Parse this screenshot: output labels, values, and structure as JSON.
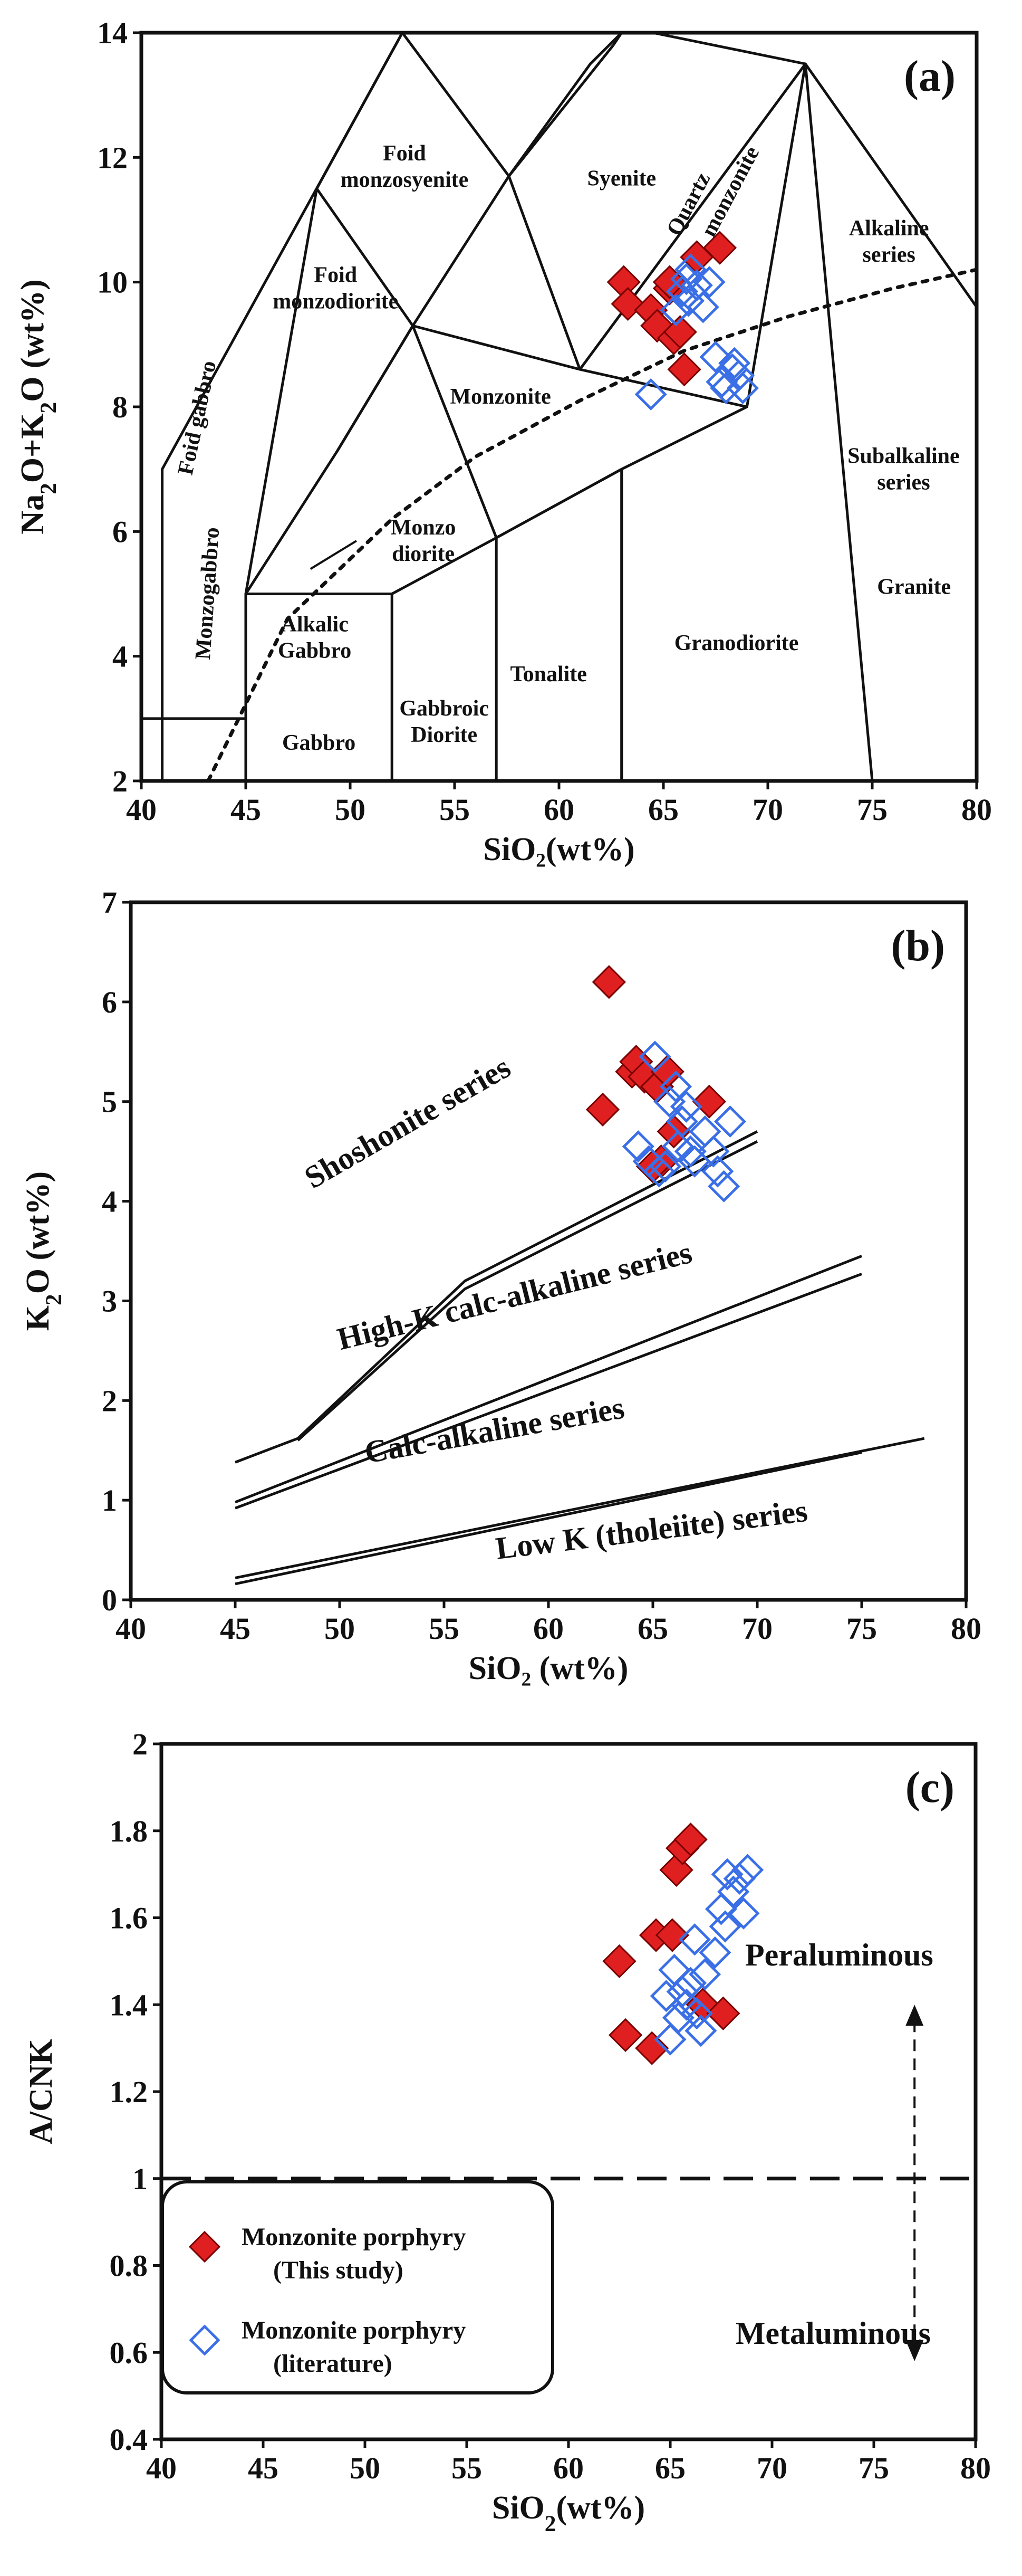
{
  "colors": {
    "red": "#e02020",
    "blue": "#3a6fe6",
    "line": "#111111"
  },
  "legend": {
    "items": [
      {
        "marker": "filled-diamond",
        "line1": "Monzonite porphyry",
        "line2": "(This study)"
      },
      {
        "marker": "open-diamond",
        "line1": "Monzonite porphyry",
        "line2": "(literature)"
      }
    ]
  },
  "chart_data": [
    {
      "id": "a",
      "type": "scatter",
      "panel_label": "(a)",
      "ylabel_parts": [
        "Na",
        "2",
        "O+K",
        "2",
        "O (wt%)"
      ],
      "xlabel": "SiO₂(wt%)",
      "xlim": [
        40,
        80
      ],
      "ylim": [
        2,
        14
      ],
      "xticks": [
        40,
        45,
        50,
        55,
        60,
        65,
        70,
        75,
        80
      ],
      "yticks": [
        2,
        4,
        6,
        8,
        10,
        12,
        14
      ],
      "fields": [
        {
          "text": [
            "Foid",
            "monzosyenite"
          ],
          "x": 52.6,
          "y": 11.95
        },
        {
          "text": [
            "Foid",
            "monzodiorite"
          ],
          "x": 49.3,
          "y": 10.0
        },
        {
          "text": [
            "Syenite"
          ],
          "x": 63.0,
          "y": 11.55
        },
        {
          "text": [
            "Monzonite"
          ],
          "x": 57.2,
          "y": 8.05
        },
        {
          "text": [
            "Monzo",
            "diorite"
          ],
          "x": 53.5,
          "y": 5.95
        },
        {
          "text": [
            "Alkalic",
            "Gabbro"
          ],
          "x": 48.3,
          "y": 4.4
        },
        {
          "text": [
            "Gabbro"
          ],
          "x": 48.5,
          "y": 2.5
        },
        {
          "text": [
            "Gabbroic",
            "Diorite"
          ],
          "x": 54.5,
          "y": 3.05
        },
        {
          "text": [
            "Tonalite"
          ],
          "x": 59.5,
          "y": 3.6
        },
        {
          "text": [
            "Granodiorite"
          ],
          "x": 68.5,
          "y": 4.1
        },
        {
          "text": [
            "Granite"
          ],
          "x": 77.0,
          "y": 5.0
        },
        {
          "text": [
            "Alkaline",
            "series"
          ],
          "x": 75.8,
          "y": 10.75
        },
        {
          "text": [
            "Subalkaline",
            "series"
          ],
          "x": 76.5,
          "y": 7.1
        }
      ],
      "rotated_labels": [
        {
          "text": "Foid gabbro",
          "x": 43.0,
          "y": 7.8,
          "angle": -78
        },
        {
          "text": "Monzogabbro",
          "x": 43.5,
          "y": 5.0,
          "angle": -86
        },
        {
          "text": "Quartz",
          "x": 66.5,
          "y": 11.2,
          "angle": -62
        },
        {
          "text": "monzonite",
          "x": 68.5,
          "y": 11.4,
          "angle": -62
        }
      ],
      "boundaries": [
        [
          [
            41,
            2
          ],
          [
            41,
            7
          ],
          [
            52.5,
            14
          ]
        ],
        [
          [
            40,
            3
          ],
          [
            45,
            3
          ],
          [
            45,
            5
          ],
          [
            48.4,
            11.5
          ],
          [
            52.5,
            14
          ]
        ],
        [
          [
            45,
            2
          ],
          [
            45,
            5
          ],
          [
            52,
            5
          ],
          [
            52,
            2
          ]
        ],
        [
          [
            57,
            2
          ],
          [
            57,
            5.9
          ],
          [
            63,
            7
          ],
          [
            63,
            2
          ]
        ],
        [
          [
            45,
            5
          ],
          [
            49.4,
            7.3
          ],
          [
            53,
            9.3
          ],
          [
            57.6,
            11.7
          ],
          [
            61.5,
            13.5
          ],
          [
            63,
            14
          ]
        ],
        [
          [
            52,
            5
          ],
          [
            57,
            5.9
          ],
          [
            63,
            7
          ],
          [
            69,
            8
          ],
          [
            71.8,
            13.5
          ],
          [
            75,
            2
          ]
        ],
        [
          [
            63,
            7
          ],
          [
            63,
            2
          ]
        ],
        [
          [
            49.4,
            7.3
          ],
          [
            53,
            9.3
          ]
        ],
        [
          [
            57,
            5.9
          ],
          [
            53,
            9.3
          ],
          [
            48.4,
            11.5
          ]
        ],
        [
          [
            69,
            8
          ],
          [
            61,
            8.6
          ],
          [
            53,
            9.3
          ]
        ],
        [
          [
            61,
            8.6
          ],
          [
            57.6,
            11.7
          ],
          [
            52.5,
            14
          ]
        ],
        [
          [
            61,
            8.6
          ],
          [
            71.8,
            13.5
          ],
          [
            80,
            9.6
          ]
        ],
        [
          [
            57.6,
            11.7
          ],
          [
            62.6,
            13.8
          ]
        ],
        [
          [
            62.6,
            13.8
          ],
          [
            63,
            14
          ]
        ],
        [
          [
            64.5,
            14
          ],
          [
            71.8,
            13.5
          ]
        ]
      ],
      "dotted": [
        [
          43.2,
          2
        ],
        [
          47,
          4.6
        ],
        [
          52,
          6.2
        ],
        [
          56,
          7.2
        ],
        [
          61,
          8.1
        ],
        [
          66,
          8.9
        ],
        [
          71,
          9.45
        ],
        [
          76,
          9.9
        ],
        [
          80,
          10.2
        ]
      ],
      "leader": [
        [
          48.1,
          5.4
        ],
        [
          50.3,
          5.85
        ]
      ],
      "series": [
        {
          "name": "This study",
          "marker": "filled",
          "points": [
            [
              63.1,
              10.0
            ],
            [
              63.3,
              9.65
            ],
            [
              64.4,
              9.55
            ],
            [
              64.7,
              9.3
            ],
            [
              65.3,
              9.9
            ],
            [
              65.5,
              9.1
            ],
            [
              65.8,
              9.2
            ],
            [
              66.0,
              8.6
            ],
            [
              66.6,
              10.4
            ],
            [
              67.7,
              10.55
            ],
            [
              65.3,
              10.0
            ]
          ]
        },
        {
          "name": "literature",
          "marker": "open",
          "points": [
            [
              64.4,
              8.2
            ],
            [
              65.6,
              9.55
            ],
            [
              65.9,
              9.85
            ],
            [
              66.1,
              10.05
            ],
            [
              66.2,
              9.7
            ],
            [
              66.3,
              10.2
            ],
            [
              66.6,
              9.95
            ],
            [
              66.9,
              9.6
            ],
            [
              67.2,
              10.0
            ],
            [
              67.5,
              8.8
            ],
            [
              67.8,
              8.4
            ],
            [
              68.0,
              8.3
            ],
            [
              68.3,
              8.6
            ],
            [
              68.6,
              8.5
            ],
            [
              68.8,
              8.3
            ],
            [
              68.4,
              8.7
            ]
          ]
        }
      ]
    },
    {
      "id": "b",
      "type": "scatter",
      "panel_label": "(b)",
      "ylabel_parts": [
        "K",
        "2",
        "O (wt%)"
      ],
      "xlabel": "SiO₂ (wt%)",
      "xlim": [
        40,
        80
      ],
      "ylim": [
        0,
        7
      ],
      "xticks": [
        40,
        45,
        50,
        55,
        60,
        65,
        70,
        75,
        80
      ],
      "yticks": [
        0,
        1,
        2,
        3,
        4,
        5,
        6,
        7
      ],
      "series_labels": [
        {
          "text": "Shoshonite series",
          "x": 53.5,
          "y": 4.7,
          "angle": -30
        },
        {
          "text": "High-K calc-alkaline series",
          "x": 58.5,
          "y": 2.95,
          "angle": -14
        },
        {
          "text": "Calc-alkaline series",
          "x": 57.5,
          "y": 1.6,
          "angle": -10
        },
        {
          "text": "Low K (tholeiite) series",
          "x": 65.0,
          "y": 0.6,
          "angle": -7
        }
      ],
      "boundaries": [
        [
          [
            45,
            1.38
          ],
          [
            48,
            1.62
          ],
          [
            56,
            3.2
          ],
          [
            70,
            4.7
          ]
        ],
        [
          [
            48,
            1.6
          ],
          [
            56,
            3.12
          ],
          [
            70,
            4.6
          ]
        ],
        [
          [
            45,
            0.98
          ],
          [
            75,
            3.45
          ]
        ],
        [
          [
            45,
            0.92
          ],
          [
            75,
            3.27
          ]
        ],
        [
          [
            45,
            0.22
          ],
          [
            78,
            1.62
          ]
        ],
        [
          [
            45,
            0.16
          ],
          [
            75,
            1.48
          ]
        ]
      ],
      "series": [
        {
          "name": "This study",
          "marker": "filled",
          "points": [
            [
              62.6,
              4.92
            ],
            [
              62.9,
              6.2
            ],
            [
              64.0,
              5.3
            ],
            [
              64.2,
              5.4
            ],
            [
              64.6,
              5.25
            ],
            [
              65.2,
              5.15
            ],
            [
              65.4,
              4.4
            ],
            [
              65.7,
              5.3
            ],
            [
              66.0,
              4.7
            ],
            [
              67.7,
              5.0
            ],
            [
              65.0,
              4.35
            ]
          ]
        },
        {
          "name": "literature",
          "marker": "open",
          "points": [
            [
              64.3,
              4.55
            ],
            [
              64.8,
              4.4
            ],
            [
              65.1,
              5.45
            ],
            [
              65.3,
              4.3
            ],
            [
              65.6,
              4.35
            ],
            [
              65.8,
              5.0
            ],
            [
              66.1,
              5.15
            ],
            [
              66.4,
              4.8
            ],
            [
              66.6,
              4.95
            ],
            [
              66.8,
              4.5
            ],
            [
              67.0,
              4.4
            ],
            [
              67.5,
              4.7
            ],
            [
              67.9,
              4.5
            ],
            [
              68.1,
              4.3
            ],
            [
              68.4,
              4.15
            ],
            [
              68.7,
              4.8
            ],
            [
              66.2,
              4.55
            ]
          ]
        }
      ]
    },
    {
      "id": "c",
      "type": "scatter",
      "panel_label": "(c)",
      "ylabel_parts": [
        "A/CNK"
      ],
      "xlabel_parts": [
        "SiO",
        "2",
        "(wt%)"
      ],
      "xlim": [
        40,
        80
      ],
      "ylim": [
        0.4,
        2.0
      ],
      "xticks": [
        40,
        45,
        50,
        55,
        60,
        65,
        70,
        75,
        80
      ],
      "yticks": [
        0.4,
        0.6,
        0.8,
        1.0,
        1.2,
        1.4,
        1.6,
        1.8,
        2.0
      ],
      "dashed_y": 1.0,
      "annotations": [
        {
          "text": "Peraluminous",
          "x": 73.3,
          "y": 1.49
        },
        {
          "text": "Metaluminous",
          "x": 73.0,
          "y": 0.62
        }
      ],
      "arrow": {
        "x": 77.0,
        "y_top": 1.4,
        "y_bottom": 0.58
      },
      "series": [
        {
          "name": "This study",
          "marker": "filled",
          "points": [
            [
              62.5,
              1.5
            ],
            [
              62.8,
              1.33
            ],
            [
              64.1,
              1.3
            ],
            [
              64.3,
              1.56
            ],
            [
              65.1,
              1.56
            ],
            [
              65.3,
              1.71
            ],
            [
              65.6,
              1.76
            ],
            [
              66.0,
              1.78
            ],
            [
              66.6,
              1.4
            ],
            [
              67.6,
              1.38
            ]
          ]
        },
        {
          "name": "literature",
          "marker": "open",
          "points": [
            [
              64.8,
              1.42
            ],
            [
              65.0,
              1.32
            ],
            [
              65.2,
              1.48
            ],
            [
              65.4,
              1.37
            ],
            [
              65.6,
              1.43
            ],
            [
              65.8,
              1.4
            ],
            [
              66.0,
              1.45
            ],
            [
              66.2,
              1.55
            ],
            [
              66.3,
              1.38
            ],
            [
              66.5,
              1.34
            ],
            [
              66.7,
              1.47
            ],
            [
              67.2,
              1.52
            ],
            [
              67.5,
              1.62
            ],
            [
              67.8,
              1.7
            ],
            [
              68.1,
              1.66
            ],
            [
              68.4,
              1.69
            ],
            [
              68.6,
              1.61
            ],
            [
              68.8,
              1.71
            ],
            [
              67.7,
              1.58
            ]
          ]
        }
      ]
    }
  ]
}
